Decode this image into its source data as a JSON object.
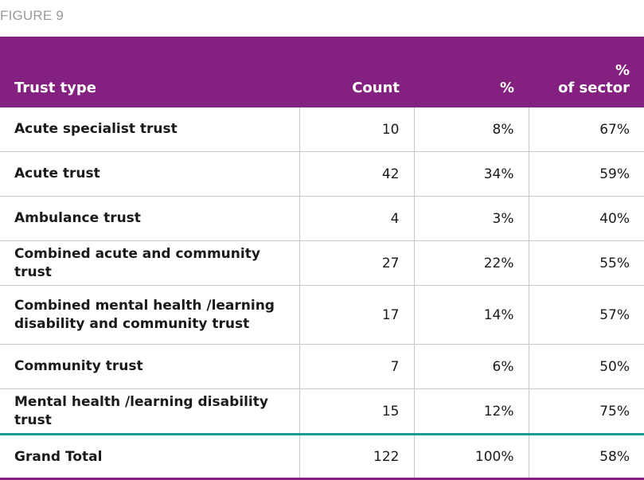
{
  "figure_label": "FIGURE 9",
  "header": {
    "trust_type": "Trust type",
    "count": "Count",
    "percent": "%",
    "percent_of_sector_line1": "%",
    "percent_of_sector_line2": "of sector"
  },
  "rows": [
    {
      "name": "Acute specialist trust",
      "count": "10",
      "percent": "8%",
      "of_sector": "67%"
    },
    {
      "name": "Acute trust",
      "count": "42",
      "percent": "34%",
      "of_sector": "59%"
    },
    {
      "name": "Ambulance trust",
      "count": "4",
      "percent": "3%",
      "of_sector": "40%"
    },
    {
      "name": "Combined acute and community trust",
      "count": "27",
      "percent": "22%",
      "of_sector": "55%"
    },
    {
      "name_line1": "Combined mental health /learning",
      "name_line2": "disability and community trust",
      "count": "17",
      "percent": "14%",
      "of_sector": "57%"
    },
    {
      "name": "Community trust",
      "count": "7",
      "percent": "6%",
      "of_sector": "50%"
    },
    {
      "name": "Mental health /learning disability trust",
      "count": "15",
      "percent": "12%",
      "of_sector": "75%"
    }
  ],
  "total": {
    "name": "Grand Total",
    "count": "122",
    "percent": "100%",
    "of_sector": "58%"
  },
  "colors": {
    "header_bg": "#84207f",
    "total_rule": "#1a9e94",
    "label_gray": "#9a9a9a"
  }
}
